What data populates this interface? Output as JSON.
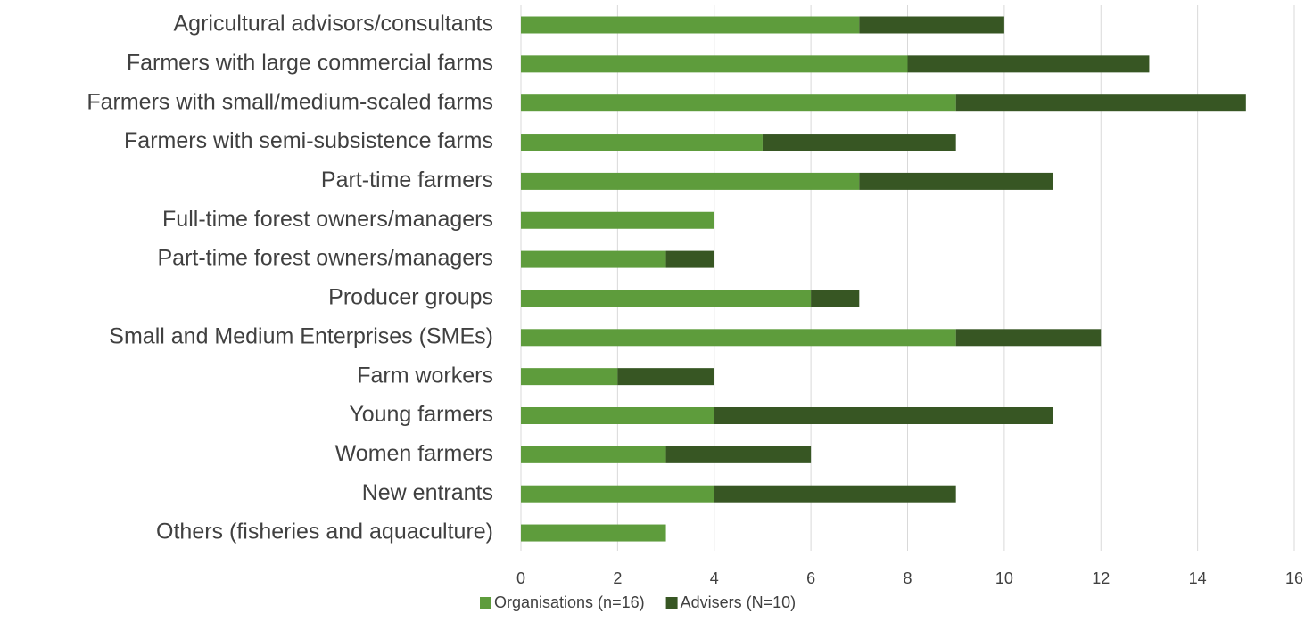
{
  "chart_data": {
    "type": "stacked_barh",
    "categories": [
      "Agricultural advisors/consultants",
      "Farmers with large commercial farms",
      "Farmers with small/medium-scaled farms",
      "Farmers with semi-subsistence farms",
      "Part-time farmers",
      "Full-time forest owners/managers",
      "Part-time forest owners/managers",
      "Producer groups",
      "Small and Medium Enterprises (SMEs)",
      "Farm workers",
      "Young farmers",
      "Women farmers",
      "New entrants",
      "Others (fisheries and aquaculture)"
    ],
    "series": [
      {
        "name": "Organisations (n=16)",
        "color": "#5e9c3c",
        "values": [
          7,
          8,
          9,
          5,
          7,
          4,
          3,
          6,
          9,
          2,
          4,
          3,
          4,
          3
        ]
      },
      {
        "name": "Advisers (N=10)",
        "color": "#375623",
        "values": [
          3,
          5,
          6,
          4,
          4,
          0,
          1,
          1,
          3,
          2,
          7,
          3,
          5,
          0
        ]
      }
    ],
    "xlim": [
      0,
      16
    ],
    "xticks": [
      0,
      2,
      4,
      6,
      8,
      10,
      12,
      14,
      16
    ],
    "grid": true,
    "legend": "bottom"
  }
}
